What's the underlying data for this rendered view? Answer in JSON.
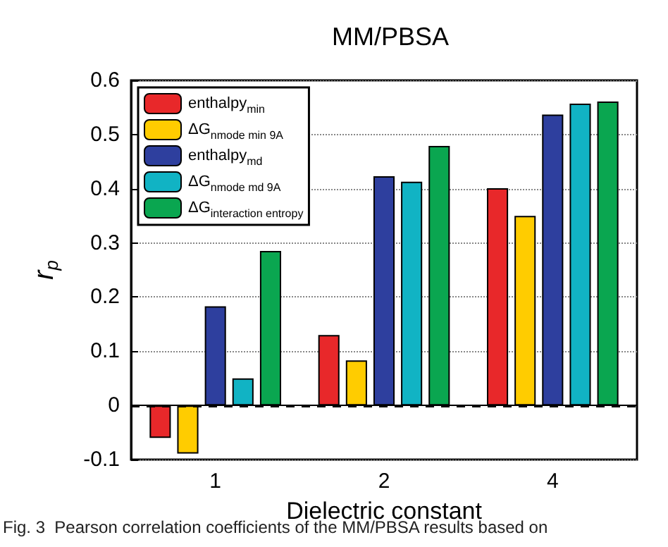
{
  "chart_data": {
    "type": "bar",
    "title": "MM/PBSA",
    "xlabel": "Dielectric constant",
    "ylabel": "r$_{p}$",
    "categories": [
      "1",
      "2",
      "4"
    ],
    "series": [
      {
        "name": "enthalpy$_{min}$",
        "color": "#e8282a",
        "values": [
          -0.06,
          0.13,
          0.401
        ]
      },
      {
        "name": "ΔG$_{nmode min 9A}$",
        "color": "#ffcc00",
        "values": [
          -0.089,
          0.083,
          0.35
        ]
      },
      {
        "name": "enthalpy$_{md}$",
        "color": "#2e3f9e",
        "values": [
          0.183,
          0.423,
          0.537
        ]
      },
      {
        "name": "ΔG$_{nmode md 9A}$",
        "color": "#11b3c4",
        "values": [
          0.05,
          0.413,
          0.557
        ]
      },
      {
        "name": "ΔG$_{interaction entropy}$",
        "color": "#0aa650",
        "values": [
          0.285,
          0.479,
          0.561
        ]
      }
    ],
    "ylim": [
      -0.1,
      0.6
    ],
    "yticks": [
      -0.1,
      0,
      0.1,
      0.2,
      0.3,
      0.4,
      0.5,
      0.6
    ],
    "grid": "y",
    "legend": "top left",
    "ref_lines": [
      {
        "axis": "y",
        "value": 0,
        "color": "#000000",
        "line_style": "dashed"
      }
    ],
    "annotations": [
      "Fig. 3  Pearson correlation coefficients of the MM/PBSA results based on"
    ]
  }
}
